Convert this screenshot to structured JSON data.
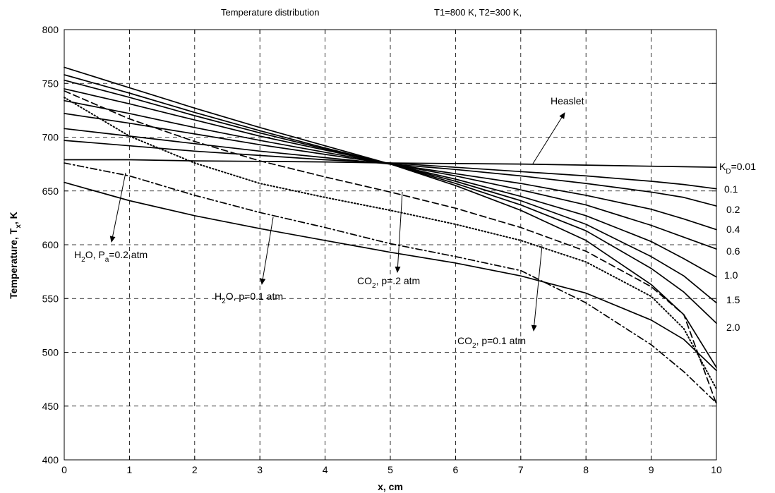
{
  "chart_data": {
    "type": "line",
    "title": "Temperature distribution",
    "subtitle": "T1=800 K,  T2=300 K,",
    "xlabel": "x, cm",
    "ylabel": {
      "main": "Temperature, T",
      "sub": "x",
      "tail": ", K"
    },
    "xlim": [
      0,
      10
    ],
    "ylim": [
      400,
      800
    ],
    "xticks": [
      0,
      1,
      2,
      3,
      4,
      5,
      6,
      7,
      8,
      9,
      10
    ],
    "yticks": [
      400,
      450,
      500,
      550,
      600,
      650,
      700,
      750,
      800
    ],
    "grid": true,
    "x": [
      0,
      1,
      2,
      3,
      4,
      5,
      6,
      7,
      8,
      9,
      9.5,
      10
    ],
    "series": [
      {
        "name": "KD=0.01",
        "style": "solid",
        "values": [
          679,
          679,
          678,
          677.5,
          677,
          676,
          675.5,
          675,
          674,
          673,
          672.5,
          672
        ]
      },
      {
        "name": "0.1",
        "style": "solid",
        "values": [
          697,
          692,
          687,
          683,
          679,
          676,
          672,
          668,
          664,
          659,
          656,
          652
        ]
      },
      {
        "name": "0.2",
        "style": "solid",
        "values": [
          708,
          701,
          694,
          687,
          681,
          675,
          670,
          664,
          657,
          649,
          644,
          636
        ]
      },
      {
        "name": "0.4",
        "style": "solid",
        "values": [
          722,
          713,
          703,
          693,
          684,
          675,
          666,
          657,
          646,
          633,
          624,
          614
        ]
      },
      {
        "name": "0.6",
        "style": "solid",
        "values": [
          734,
          722,
          709,
          697,
          686,
          675,
          664,
          651,
          637,
          618,
          607,
          596
        ]
      },
      {
        "name": "1.0",
        "style": "solid",
        "values": [
          745,
          731,
          716,
          701,
          688,
          675,
          661,
          645,
          627,
          603,
          587,
          570
        ]
      },
      {
        "name": "1.5",
        "style": "solid",
        "values": [
          753,
          737,
          720,
          704,
          689,
          675,
          659,
          641,
          619,
          589,
          571,
          546
        ]
      },
      {
        "name": "2.0",
        "style": "solid",
        "values": [
          758,
          741,
          723,
          706,
          690,
          675,
          657,
          637,
          613,
          578,
          556,
          527
        ]
      },
      {
        "name": "Heaslet",
        "style": "solid",
        "values": [
          765,
          746,
          727,
          709,
          692,
          675,
          655,
          632,
          604,
          563,
          535,
          486
        ]
      },
      {
        "name": "H2O, Pa=0.2 atm",
        "style": "dashed",
        "values": [
          743,
          717,
          696,
          678,
          663,
          649,
          634,
          616,
          594,
          561,
          535,
          452
        ]
      },
      {
        "name": "CO2, p=.2 atm",
        "style": "dotted",
        "values": [
          737,
          701,
          676,
          657,
          644,
          632,
          619,
          604,
          584,
          552,
          522,
          466
        ]
      },
      {
        "name": "H2O, p=0.1 atm",
        "style": "dashdot",
        "values": [
          676,
          664,
          646,
          630,
          616,
          601,
          589,
          576,
          546,
          507,
          482,
          453
        ]
      },
      {
        "name": "CO2, p=0.1 atm",
        "style": "solid",
        "values": [
          658,
          641,
          627,
          615,
          604,
          593,
          583,
          571,
          555,
          530,
          512,
          483
        ]
      }
    ],
    "annotations": {
      "heaslet": "Heaslet",
      "kd_main": "K",
      "kd_sub": "D",
      "kd_tail": "=0.01",
      "kd_values": [
        "0.1",
        "0.2",
        "0.4",
        "0.6",
        "1.0",
        "1.5",
        "2.0"
      ],
      "h2o_02": {
        "main": "H",
        "sub1": "2",
        "mid": "O, P",
        "sub2": "a",
        "tail": "=0.2 atm"
      },
      "h2o_01": {
        "main": "H",
        "sub1": "2",
        "tail": "O, p=0.1 atm"
      },
      "co2_02": {
        "main": "CO",
        "sub1": "2",
        "tail": ", p=.2 atm"
      },
      "co2_01": {
        "main": "CO",
        "sub1": "2",
        "tail": ", p=0.1 atm"
      }
    }
  }
}
